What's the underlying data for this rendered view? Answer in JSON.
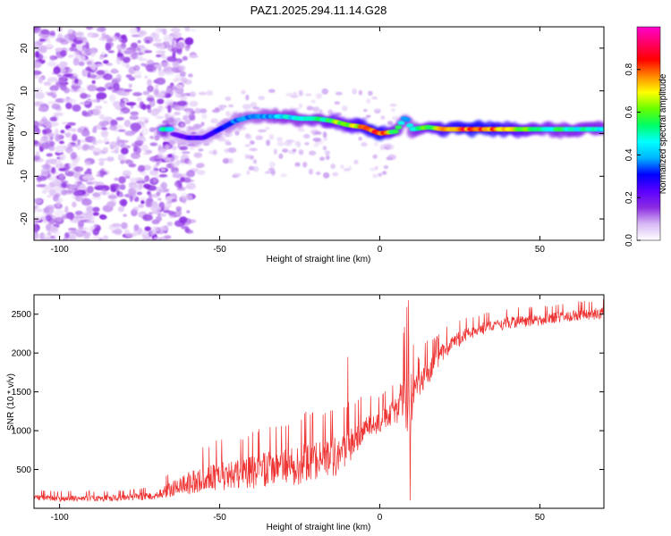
{
  "title": "PAZ1.2025.294.11.14.G28",
  "chart_data": [
    {
      "type": "heatmap",
      "xlabel": "Height of straight line (km)",
      "ylabel": "Frequency (Hz)",
      "xlim": [
        -108,
        70
      ],
      "ylim": [
        -25,
        25
      ],
      "x_ticks": [
        -100,
        -50,
        0,
        50
      ],
      "y_ticks": [
        -20,
        -10,
        0,
        10,
        20
      ],
      "colorbar": {
        "label": "Normalized spectral amplitude",
        "range": [
          0,
          1
        ],
        "ticks": [
          "0.0",
          "0.2",
          "0.4",
          "0.6",
          "0.8"
        ],
        "colormap": [
          "#ffffff",
          "#d8b8f4",
          "#8a2be2",
          "#5a00ff",
          "#0000ff",
          "#00b4ff",
          "#00ffff",
          "#00ff66",
          "#66ff00",
          "#ffff00",
          "#ff8800",
          "#ff0000",
          "#ff0066",
          "#ff00cc"
        ]
      },
      "ridge": [
        {
          "x": -65,
          "y": 0,
          "a": 0.2
        },
        {
          "x": -60,
          "y": -1,
          "a": 0.25
        },
        {
          "x": -55,
          "y": -1,
          "a": 0.25
        },
        {
          "x": -50,
          "y": 1,
          "a": 0.3
        },
        {
          "x": -45,
          "y": 3,
          "a": 0.35
        },
        {
          "x": -40,
          "y": 4,
          "a": 0.35
        },
        {
          "x": -35,
          "y": 4,
          "a": 0.4
        },
        {
          "x": -30,
          "y": 4,
          "a": 0.45
        },
        {
          "x": -25,
          "y": 3.5,
          "a": 0.45
        },
        {
          "x": -20,
          "y": 3.5,
          "a": 0.5
        },
        {
          "x": -15,
          "y": 3,
          "a": 0.6
        },
        {
          "x": -10,
          "y": 2,
          "a": 0.65
        },
        {
          "x": -5,
          "y": 1.5,
          "a": 0.75
        },
        {
          "x": 0,
          "y": 0,
          "a": 0.85
        },
        {
          "x": 5,
          "y": 0.5,
          "a": 0.55
        },
        {
          "x": 8,
          "y": 4,
          "a": 0.4
        },
        {
          "x": 10,
          "y": 1,
          "a": 0.45
        },
        {
          "x": 15,
          "y": 1.5,
          "a": 0.6
        },
        {
          "x": 20,
          "y": 1,
          "a": 0.75
        },
        {
          "x": 30,
          "y": 1,
          "a": 0.85
        },
        {
          "x": 40,
          "y": 1,
          "a": 0.75
        },
        {
          "x": 50,
          "y": 1,
          "a": 0.55
        },
        {
          "x": 60,
          "y": 1,
          "a": 0.5
        },
        {
          "x": 70,
          "y": 1,
          "a": 0.5
        }
      ]
    },
    {
      "type": "line",
      "xlabel": "Height of straight line (km)",
      "ylabel": "SNR (10 * v/v)",
      "xlim": [
        -108,
        70
      ],
      "ylim": [
        0,
        2750
      ],
      "x_ticks": [
        -100,
        -50,
        0,
        50
      ],
      "y_ticks": [
        500,
        1000,
        1500,
        2000,
        2500
      ],
      "color": "#ee3333",
      "envelope": {
        "x": [
          -108,
          -100,
          -90,
          -80,
          -75,
          -70,
          -65,
          -60,
          -55,
          -50,
          -45,
          -40,
          -35,
          -30,
          -25,
          -20,
          -15,
          -10,
          -5,
          0,
          5,
          8,
          9,
          10,
          12,
          15,
          18,
          20,
          25,
          30,
          40,
          50,
          60,
          70
        ],
        "trend": [
          140,
          130,
          130,
          140,
          150,
          170,
          250,
          330,
          390,
          430,
          450,
          480,
          500,
          540,
          580,
          620,
          660,
          760,
          1020,
          1120,
          1260,
          1480,
          1500,
          1400,
          1560,
          1760,
          1900,
          2050,
          2200,
          2300,
          2400,
          2430,
          2480,
          2520
        ],
        "amplitude": [
          60,
          60,
          60,
          60,
          70,
          80,
          150,
          220,
          260,
          300,
          280,
          320,
          380,
          360,
          400,
          420,
          400,
          380,
          280,
          200,
          260,
          600,
          1000,
          500,
          250,
          280,
          200,
          180,
          150,
          120,
          120,
          110,
          110,
          110
        ]
      },
      "spikes": [
        {
          "x": 9,
          "y": 2680
        },
        {
          "x": 9.5,
          "y": 100
        },
        {
          "x": -10,
          "y": 1950
        },
        {
          "x": 12,
          "y": 1950
        }
      ]
    }
  ]
}
